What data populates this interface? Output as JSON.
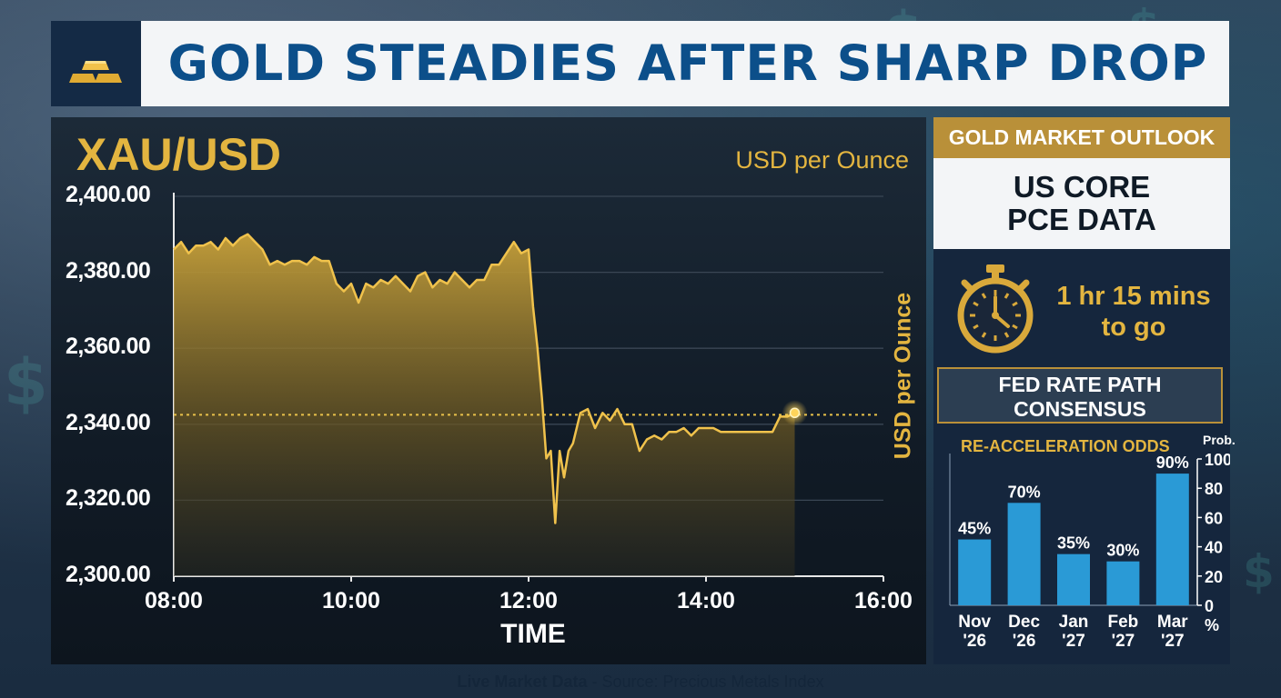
{
  "banner": {
    "title": "GOLD STEADIES AFTER SHARP DROP",
    "icon": "gold-bars-icon"
  },
  "main_chart": {
    "symbol": "XAU/USD",
    "unit_label_top": "USD per Ounce",
    "ylabel": "USD per Ounce",
    "xlabel": "TIME"
  },
  "sidebar": {
    "outlook_label": "GOLD MARKET OUTLOOK",
    "event_line1": "US CORE",
    "event_line2": "PCE DATA",
    "countdown_line1": "1 hr 15 mins",
    "countdown_line2": "to go",
    "countdown_icon": "stopwatch-icon",
    "fed_line1": "FED RATE PATH",
    "fed_line2": "CONSENSUS",
    "odds_title": "RE-ACCELERATION ODDS",
    "prob_label": "Prob.",
    "percent_label": "%"
  },
  "footer": {
    "source_bold": "Live Market Data",
    "source_rest": " - Source: Precious Metals Index"
  },
  "colors": {
    "gold": "#e3b540",
    "accent_blue": "#2a9ad6",
    "title_blue": "#0c4f8a"
  },
  "chart_data": [
    {
      "type": "area",
      "title": "XAU/USD",
      "xlabel": "TIME",
      "ylabel": "USD per Ounce",
      "ylim": [
        2300,
        2400
      ],
      "xlim": [
        "08:00",
        "16:00"
      ],
      "y_ticks": [
        "2,300.00",
        "2,320.00",
        "2,340.00",
        "2,360.00",
        "2,380.00",
        "2,400.00"
      ],
      "x_ticks": [
        "08:00",
        "10:00",
        "12:00",
        "14:00",
        "16:00"
      ],
      "grid": true,
      "reference_line": 2342.5,
      "series": [
        {
          "x": [
            "08:00",
            "08:05",
            "08:10",
            "08:15",
            "08:20",
            "08:25",
            "08:30",
            "08:35",
            "08:40",
            "08:45",
            "08:50",
            "08:55",
            "09:00",
            "09:05",
            "09:10",
            "09:15",
            "09:20",
            "09:25",
            "09:30",
            "09:35",
            "09:40",
            "09:45",
            "09:50",
            "09:55",
            "10:00",
            "10:05",
            "10:10",
            "10:15",
            "10:20",
            "10:25",
            "10:30",
            "10:35",
            "10:40",
            "10:45",
            "10:50",
            "10:55",
            "11:00",
            "11:05",
            "11:10",
            "11:15",
            "11:20",
            "11:25",
            "11:30",
            "11:35",
            "11:40",
            "11:45",
            "11:50",
            "11:55",
            "12:00",
            "12:03",
            "12:06",
            "12:09",
            "12:12",
            "12:15",
            "12:18",
            "12:21",
            "12:24",
            "12:27",
            "12:30",
            "12:35",
            "12:40",
            "12:45",
            "12:50",
            "12:55",
            "13:00",
            "13:05",
            "13:10",
            "13:15",
            "13:20",
            "13:25",
            "13:30",
            "13:35",
            "13:40",
            "13:45",
            "13:50",
            "13:55",
            "14:00",
            "14:05",
            "14:10",
            "14:15",
            "14:20",
            "14:25",
            "14:30",
            "14:35",
            "14:40",
            "14:45",
            "14:50",
            "14:55",
            "15:00"
          ],
          "values": [
            2386,
            2388,
            2385,
            2387,
            2387,
            2388,
            2386,
            2389,
            2387,
            2389,
            2390,
            2388,
            2386,
            2382,
            2383,
            2382,
            2383,
            2383,
            2382,
            2384,
            2383,
            2383,
            2377,
            2375,
            2377,
            2372,
            2377,
            2376,
            2378,
            2377,
            2379,
            2377,
            2375,
            2379,
            2380,
            2376,
            2378,
            2377,
            2380,
            2378,
            2376,
            2378,
            2378,
            2382,
            2382,
            2385,
            2388,
            2385,
            2386,
            2371,
            2360,
            2347,
            2331,
            2333,
            2314,
            2333,
            2326,
            2333,
            2335,
            2343,
            2344,
            2339,
            2343,
            2341,
            2344,
            2340,
            2340,
            2333,
            2336,
            2337,
            2336,
            2338,
            2338,
            2339,
            2337,
            2339,
            2339,
            2339,
            2338,
            2338,
            2338,
            2338,
            2338,
            2338,
            2338,
            2338,
            2342,
            2342,
            2343
          ]
        }
      ]
    },
    {
      "type": "bar",
      "title": "RE-ACCELERATION ODDS",
      "categories": [
        "Nov '26",
        "Dec '26",
        "Jan '27",
        "Feb '27",
        "Mar '27"
      ],
      "category_lines": [
        [
          "Nov",
          "'26"
        ],
        [
          "Dec",
          "'26"
        ],
        [
          "Jan",
          "'27"
        ],
        [
          "Feb",
          "'27"
        ],
        [
          "Mar",
          "'27"
        ]
      ],
      "values": [
        45,
        70,
        35,
        30,
        90
      ],
      "labels": [
        "45%",
        "70%",
        "35%",
        "30%",
        "90%"
      ],
      "ylabel": "Prob.",
      "ylim": [
        0,
        100
      ],
      "y_ticks": [
        0,
        20,
        40,
        60,
        80,
        100
      ],
      "axis_side": "right"
    }
  ]
}
